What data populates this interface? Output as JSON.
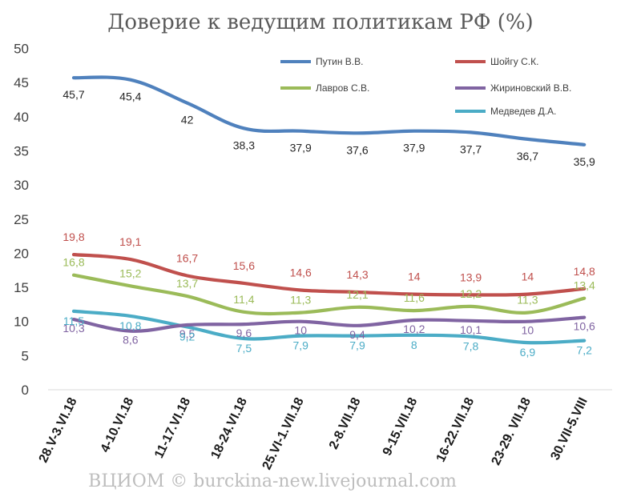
{
  "chart_data": {
    "type": "line",
    "title": "Доверие к ведущим политикам РФ (%)",
    "xlabel": "",
    "ylabel": "",
    "ylim": [
      0,
      50
    ],
    "yticks": [
      0,
      5,
      10,
      15,
      20,
      25,
      30,
      35,
      40,
      45,
      50
    ],
    "grid": false,
    "legend_position": "top-right",
    "categories": [
      "28.V-3.VI.18",
      "4-10.VI.18",
      "11-17.VI.18",
      "18-24.VI.18",
      "25.VI-1.VII.18",
      "2-8.VII.18",
      "9-15.VII.18",
      "16-22.VII.18",
      "23-29. VII.18",
      "30.VII-5.VIII"
    ],
    "series": [
      {
        "name": "Путин В.В.",
        "color": "#4f81bd",
        "values": [
          45.7,
          45.4,
          42,
          38.3,
          37.9,
          37.6,
          37.9,
          37.7,
          36.7,
          35.9
        ],
        "labels": [
          "45,7",
          "45,4",
          "42",
          "38,3",
          "37,9",
          "37,6",
          "37,9",
          "37,7",
          "36,7",
          "35,9"
        ]
      },
      {
        "name": "Шойгу С.К.",
        "color": "#c0504d",
        "values": [
          19.8,
          19.1,
          16.7,
          15.6,
          14.6,
          14.3,
          14,
          13.9,
          14,
          14.8
        ],
        "labels": [
          "19,8",
          "19,1",
          "16,7",
          "15,6",
          "14,6",
          "14,3",
          "14",
          "13,9",
          "14",
          "14,8"
        ]
      },
      {
        "name": "Лавров С.В.",
        "color": "#9bbb59",
        "values": [
          16.8,
          15.2,
          13.7,
          11.4,
          11.3,
          12.1,
          11.6,
          12.2,
          11.3,
          13.4
        ],
        "labels": [
          "16,8",
          "15,2",
          "13,7",
          "11,4",
          "11,3",
          "12,1",
          "11,6",
          "12,2",
          "11,3",
          "13,4"
        ]
      },
      {
        "name": "Жириновский В.В.",
        "color": "#8064a2",
        "values": [
          10.3,
          8.6,
          9.5,
          9.6,
          10,
          9.4,
          10.2,
          10.1,
          10,
          10.6
        ],
        "labels": [
          "10,3",
          "8,6",
          "9,5",
          "9,6",
          "10",
          "9,4",
          "10,2",
          "10,1",
          "10",
          "10,6"
        ]
      },
      {
        "name": "Медведев Д.А.",
        "color": "#4bacc6",
        "values": [
          11.5,
          10.8,
          9.2,
          7.5,
          7.9,
          7.9,
          8,
          7.8,
          6.9,
          7.2
        ],
        "labels": [
          "11,5",
          "10,8",
          "9,2",
          "7,5",
          "7,9",
          "7,9",
          "8",
          "7,8",
          "6,9",
          "7,2"
        ]
      }
    ]
  },
  "watermark": "ВЦИОМ © burckina-new.livejournal.com"
}
